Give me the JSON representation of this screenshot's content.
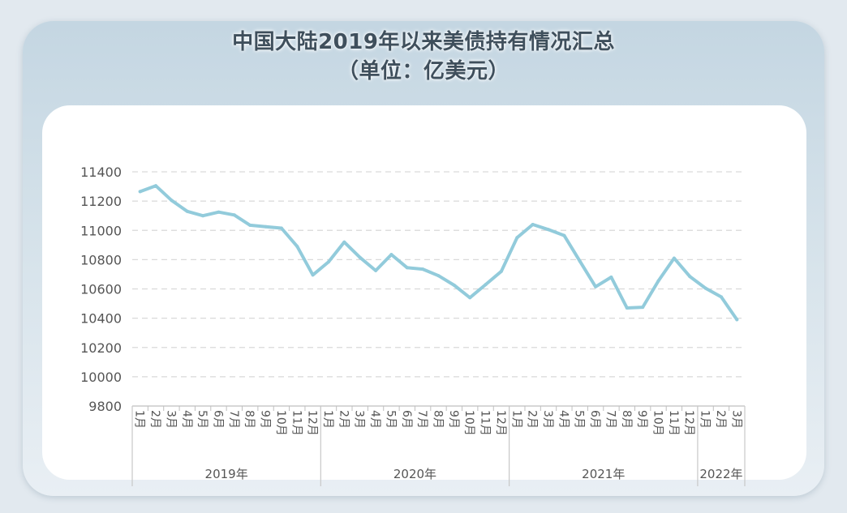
{
  "title_line1": "中国大陆2019年以来美债持有情况汇总",
  "title_line2": "（单位：亿美元）",
  "chart_data": {
    "type": "line",
    "ylim": [
      9800,
      11400
    ],
    "yticks": [
      9800,
      10000,
      10200,
      10400,
      10600,
      10800,
      11000,
      11200,
      11400
    ],
    "grid": true,
    "color": "#92cbdb",
    "groups": [
      {
        "label": "2019年",
        "months": [
          "1月",
          "2月",
          "3月",
          "4月",
          "5月",
          "6月",
          "7月",
          "8月",
          "9月",
          "10月",
          "11月",
          "12月"
        ]
      },
      {
        "label": "2020年",
        "months": [
          "1月",
          "2月",
          "3月",
          "4月",
          "5月",
          "6月",
          "7月",
          "8月",
          "9月",
          "10月",
          "11月",
          "12月"
        ]
      },
      {
        "label": "2021年",
        "months": [
          "1月",
          "2月",
          "3月",
          "4月",
          "5月",
          "6月",
          "7月",
          "8月",
          "9月",
          "10月",
          "11月",
          "12月"
        ]
      },
      {
        "label": "2022年",
        "months": [
          "1月",
          "2月",
          "3月"
        ]
      }
    ],
    "values": [
      11265,
      11305,
      11205,
      11130,
      11100,
      11125,
      11105,
      11035,
      11025,
      11015,
      10890,
      10695,
      10785,
      10920,
      10815,
      10725,
      10835,
      10745,
      10735,
      10690,
      10625,
      10540,
      10630,
      10720,
      10950,
      11040,
      11005,
      10965,
      10790,
      10615,
      10680,
      10470,
      10475,
      10655,
      10810,
      10685,
      10605,
      10545,
      10390
    ]
  }
}
